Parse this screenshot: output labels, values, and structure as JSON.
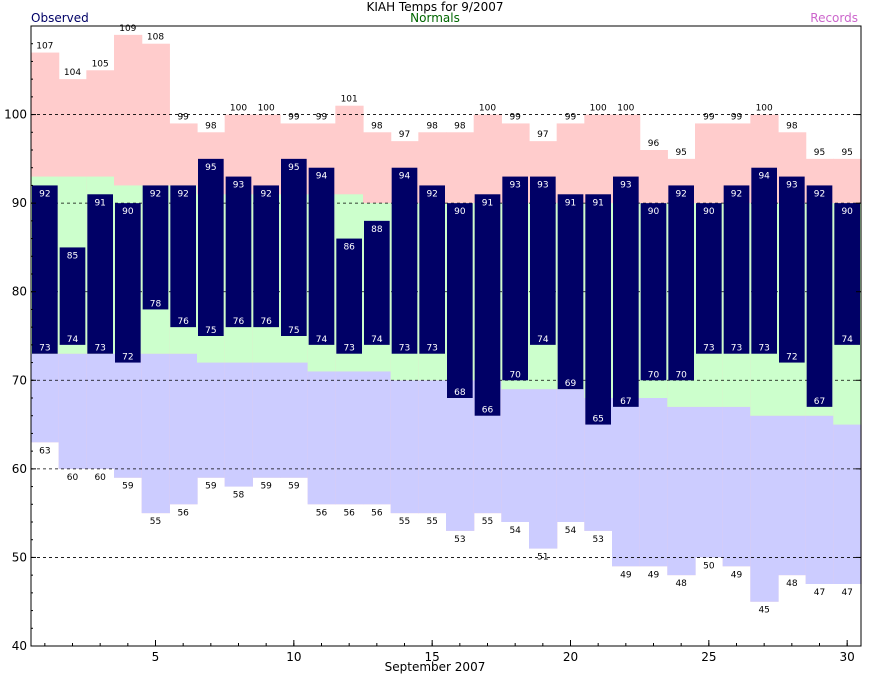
{
  "chart_data": {
    "type": "bar",
    "title": "KIAH Temps for 9/2007",
    "xlabel": "September 2007",
    "ylabel": "",
    "xlim": [
      0.5,
      30.5
    ],
    "ylim": [
      40,
      110
    ],
    "yticks": [
      40,
      50,
      60,
      70,
      80,
      90,
      100
    ],
    "xticks": [
      5,
      10,
      15,
      20,
      25,
      30
    ],
    "grid_dashed_at": [
      50,
      60,
      70,
      80,
      90,
      100
    ],
    "legend": [
      {
        "name": "Observed",
        "color": "#000066"
      },
      {
        "name": "Normals",
        "color": "#006600"
      },
      {
        "name": "Records",
        "color": "#cc66cc"
      }
    ],
    "days": [
      1,
      2,
      3,
      4,
      5,
      6,
      7,
      8,
      9,
      10,
      11,
      12,
      13,
      14,
      15,
      16,
      17,
      18,
      19,
      20,
      21,
      22,
      23,
      24,
      25,
      26,
      27,
      28,
      29,
      30
    ],
    "observed_high": [
      92,
      85,
      91,
      90,
      92,
      92,
      95,
      93,
      92,
      95,
      94,
      86,
      88,
      94,
      92,
      90,
      91,
      93,
      93,
      91,
      91,
      93,
      90,
      92,
      90,
      92,
      94,
      93,
      92,
      90
    ],
    "observed_low": [
      73,
      74,
      73,
      72,
      78,
      76,
      75,
      76,
      76,
      75,
      74,
      73,
      74,
      73,
      73,
      68,
      66,
      70,
      74,
      69,
      65,
      67,
      70,
      70,
      73,
      73,
      73,
      72,
      67,
      74
    ],
    "normal_high": [
      93,
      93,
      93,
      92,
      92,
      92,
      91,
      91,
      91,
      91,
      91,
      91,
      90,
      90,
      90,
      90,
      90,
      90,
      90,
      90,
      90,
      90,
      90,
      90,
      90,
      90,
      90,
      90,
      90,
      90
    ],
    "normal_low": [
      73,
      73,
      73,
      73,
      73,
      73,
      72,
      72,
      72,
      72,
      71,
      71,
      71,
      70,
      70,
      70,
      70,
      69,
      69,
      69,
      68,
      68,
      68,
      67,
      67,
      67,
      66,
      66,
      66,
      65
    ],
    "record_high": [
      107,
      104,
      105,
      109,
      108,
      99,
      98,
      100,
      100,
      99,
      99,
      101,
      98,
      97,
      98,
      98,
      100,
      99,
      97,
      99,
      100,
      100,
      96,
      95,
      99,
      99,
      100,
      98,
      95,
      95
    ],
    "record_low": [
      63,
      60,
      60,
      59,
      55,
      56,
      59,
      58,
      59,
      59,
      56,
      56,
      56,
      55,
      55,
      53,
      55,
      54,
      51,
      54,
      53,
      49,
      49,
      48,
      50,
      49,
      45,
      48,
      47,
      47
    ],
    "colors": {
      "observed": "#000066",
      "normal_band": "#ccffcc",
      "record_high_band": "#ffcccc",
      "record_low_band": "#ccccff",
      "observed_label": "#ffffff",
      "record_label": "#000000",
      "normals_legend": "#006600",
      "records_legend": "#cc66cc",
      "observed_legend": "#000066"
    }
  }
}
